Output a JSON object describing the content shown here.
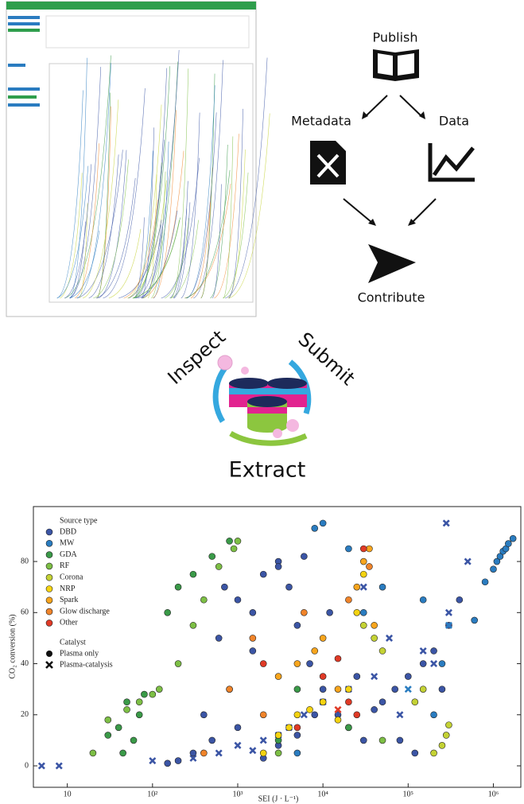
{
  "workflow": {
    "publish": "Publish",
    "metadata": "Metadata",
    "data": "Data",
    "contribute": "Contribute"
  },
  "logo": {
    "inspect": "Inspect",
    "submit": "Submit",
    "extract": "Extract"
  },
  "chart_data": {
    "type": "scatter",
    "xlabel": "SEI (J · L⁻¹)",
    "ylabel": "CO₂ conversion (%)",
    "log_x": true,
    "xlim": [
      4,
      2100000
    ],
    "ylim": [
      -8.4,
      101.5
    ],
    "xticks": [
      10,
      {
        "value": 100,
        "label": "10²"
      },
      {
        "value": 1000,
        "label": "10³"
      },
      {
        "value": 10000,
        "label": "10⁴"
      },
      {
        "value": 100000,
        "label": "10⁵"
      },
      {
        "value": 1000000,
        "label": "10⁶"
      }
    ],
    "yticks": [
      0,
      20,
      40,
      60,
      80
    ],
    "legend_title": "Source type",
    "catalyst_title": "Catalyst",
    "catalyst_names": [
      "Plasma only",
      "Plasma-catalysis"
    ],
    "series": [
      {
        "name": "DBD",
        "color": "#3b55a5",
        "x": [
          300,
          500,
          800,
          1000,
          1500,
          2000,
          3000,
          4000,
          5000,
          7000,
          10000,
          15000,
          20000,
          30000,
          50000,
          70000,
          100000,
          150000,
          200000,
          300000,
          2000,
          3000,
          5000,
          8000,
          1500,
          1000,
          600,
          400,
          200,
          150,
          700,
          3000,
          6000,
          12000,
          25000,
          40000,
          80000,
          120000,
          250000,
          400000
        ],
        "values": [
          5,
          10,
          30,
          15,
          60,
          75,
          80,
          70,
          55,
          40,
          30,
          20,
          15,
          10,
          25,
          30,
          35,
          40,
          45,
          55,
          3,
          8,
          12,
          20,
          45,
          65,
          50,
          20,
          2,
          1,
          70,
          78,
          82,
          60,
          35,
          22,
          10,
          5,
          30,
          65
        ],
        "catalyst_x": [
          5,
          8,
          100,
          300,
          600,
          1000,
          2000,
          4000,
          6000,
          10000,
          20000,
          40000,
          80000,
          150000,
          300000,
          500000,
          30000,
          60000,
          3000,
          1500,
          280000,
          200000
        ],
        "catalyst_values": [
          0,
          0,
          2,
          3,
          5,
          8,
          10,
          15,
          20,
          25,
          30,
          35,
          20,
          45,
          60,
          80,
          70,
          50,
          12,
          6,
          95,
          40
        ]
      },
      {
        "name": "MW",
        "color": "#2a7cc0",
        "x": [
          600000,
          800000,
          1000000,
          1100000,
          1200000,
          1300000,
          1400000,
          1500000,
          1700000,
          30000,
          20000,
          50000,
          8000,
          10000,
          5000,
          200000,
          250000,
          150000
        ],
        "values": [
          57,
          72,
          77,
          80,
          82,
          84,
          85,
          87,
          89,
          60,
          85,
          70,
          93,
          95,
          5,
          20,
          40,
          65
        ],
        "catalyst_x": [
          100000,
          300000
        ],
        "catalyst_values": [
          30,
          55
        ]
      },
      {
        "name": "GDA",
        "color": "#3a9a48",
        "x": [
          40,
          50,
          60,
          70,
          80,
          30,
          45,
          150,
          200,
          300,
          500,
          800,
          10000,
          20000,
          5000,
          3000
        ],
        "values": [
          15,
          25,
          10,
          20,
          28,
          12,
          5,
          60,
          70,
          75,
          82,
          88,
          25,
          15,
          30,
          10
        ],
        "catalyst_x": [],
        "catalyst_values": []
      },
      {
        "name": "RF",
        "color": "#7dbf45",
        "x": [
          20,
          30,
          50,
          70,
          100,
          120,
          200,
          300,
          400,
          600,
          900,
          1000,
          50000,
          3000
        ],
        "values": [
          5,
          18,
          22,
          25,
          28,
          30,
          40,
          55,
          65,
          78,
          85,
          88,
          10,
          5
        ],
        "catalyst_x": [],
        "catalyst_values": []
      },
      {
        "name": "Corona",
        "color": "#c4d234",
        "x": [
          200000,
          250000,
          280000,
          300000,
          40000,
          30000,
          50000,
          150000,
          120000
        ],
        "values": [
          5,
          8,
          12,
          16,
          50,
          55,
          45,
          30,
          25
        ],
        "catalyst_x": [],
        "catalyst_values": []
      },
      {
        "name": "NRP",
        "color": "#f4d311",
        "x": [
          2000,
          3000,
          4000,
          5000,
          7000,
          10000,
          15000,
          20000,
          25000,
          30000
        ],
        "values": [
          5,
          12,
          15,
          20,
          22,
          25,
          18,
          30,
          60,
          75
        ],
        "catalyst_x": [],
        "catalyst_values": []
      },
      {
        "name": "Spark",
        "color": "#f8a51d",
        "x": [
          3000,
          5000,
          8000,
          10000,
          15000,
          25000,
          30000,
          35000,
          40000
        ],
        "values": [
          35,
          40,
          45,
          50,
          30,
          70,
          80,
          85,
          55
        ],
        "catalyst_x": [],
        "catalyst_values": []
      },
      {
        "name": "Glow discharge",
        "color": "#f0842a",
        "x": [
          400,
          800,
          1500,
          6000,
          20000,
          35000,
          2000
        ],
        "values": [
          5,
          30,
          50,
          60,
          65,
          78,
          20
        ],
        "catalyst_x": [],
        "catalyst_values": []
      },
      {
        "name": "Other",
        "color": "#e03a26",
        "x": [
          2000,
          5000,
          10000,
          20000,
          30000,
          15000,
          25000
        ],
        "values": [
          40,
          15,
          35,
          25,
          85,
          42,
          20
        ],
        "catalyst_x": [
          15000
        ],
        "catalyst_values": [
          22
        ]
      }
    ]
  }
}
